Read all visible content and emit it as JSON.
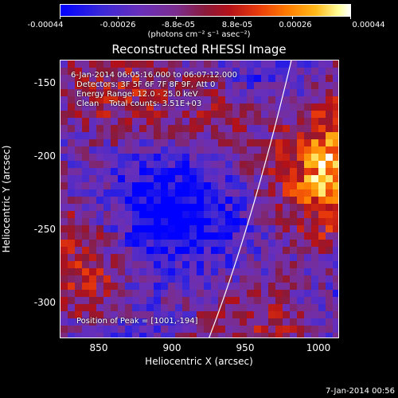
{
  "colorbar": {
    "tick_labels": [
      "-0.00044",
      "-0.00026",
      "-8.8e-05",
      "8.8e-05",
      "0.00026",
      "0.00044"
    ],
    "units": "(photons cm⁻² s⁻¹ asec⁻²)"
  },
  "title": "Reconstructed RHESSI Image",
  "info": {
    "time_range": "6-Jan-2014 06:05:16.000 to 06:07:12.000",
    "detectors": "Detectors: 3F 5F 6F 7F 8F 9F, Att 0",
    "energy": "Energy Range: 12.0 - 25.0 keV",
    "clean": "Clean    Total counts: 3.51E+03",
    "peak": "Position of Peak = [1001,-194]"
  },
  "axes": {
    "xlabel": "Heliocentric X (arcsec)",
    "ylabel": "Heliocentric Y (arcsec)",
    "x_ticks": [
      "850",
      "900",
      "950",
      "1000"
    ],
    "y_ticks": [
      "-150",
      "-200",
      "-250",
      "-300"
    ]
  },
  "timestamp": "7-Jan-2014 00:56",
  "colors": {
    "background": "#000000",
    "text": "#ffffff"
  }
}
